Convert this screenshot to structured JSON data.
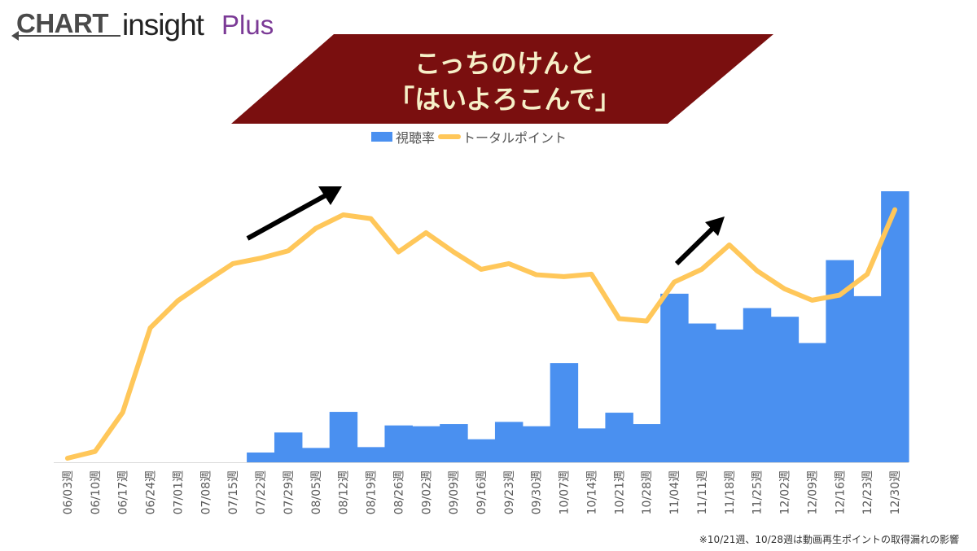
{
  "logo": {
    "chart": "CHART",
    "insight": "insight",
    "plus": "Plus"
  },
  "title": {
    "line1": "こっちのけんと",
    "line2": "「はいよろこんで」"
  },
  "legend": {
    "bar": "視聴率",
    "line": "トータルポイント"
  },
  "colors": {
    "bar": "#4a90f0",
    "line": "#ffc75a",
    "banner": "#7a0f0f",
    "title_text": "#f6f0c8",
    "arrow": "#000000"
  },
  "footnote": "※10/21週、10/28週は動画再生ポイントの取得漏れの影響",
  "chart_data": {
    "type": "bar+line",
    "categories": [
      "06/03週",
      "06/10週",
      "06/17週",
      "06/24週",
      "07/01週",
      "07/08週",
      "07/15週",
      "07/22週",
      "07/29週",
      "08/05週",
      "08/12週",
      "08/19週",
      "08/26週",
      "09/02週",
      "09/09週",
      "09/16週",
      "09/23週",
      "09/30週",
      "10/07週",
      "10/14週",
      "10/21週",
      "10/28週",
      "11/04週",
      "11/11週",
      "11/18週",
      "11/25週",
      "12/02週",
      "12/09週",
      "12/16週",
      "12/23週",
      "12/30週"
    ],
    "series": [
      {
        "name": "視聴率",
        "type": "bar",
        "values": [
          0,
          0,
          0,
          0,
          0,
          0,
          0,
          3.6,
          11.0,
          5.3,
          18.6,
          5.6,
          13.6,
          13.3,
          14.1,
          8.5,
          14.9,
          13.3,
          36.6,
          12.5,
          18.3,
          14.1,
          62.2,
          51.2,
          49.0,
          56.9,
          53.7,
          44.0,
          74.6,
          61.3,
          100
        ]
      },
      {
        "name": "トータルポイント",
        "type": "line",
        "values": [
          1.5,
          4.0,
          18.4,
          49.6,
          59.6,
          66.6,
          73.3,
          75.3,
          78.0,
          86.3,
          91.3,
          89.9,
          77.6,
          84.7,
          77.6,
          71.2,
          73.3,
          69.2,
          68.5,
          69.4,
          53.0,
          52.1,
          66.5,
          71.2,
          80.2,
          70.7,
          64.0,
          59.8,
          61.7,
          69.4,
          93.2
        ]
      }
    ],
    "ylim": [
      0,
      100
    ],
    "grid": false,
    "legend_position": "top",
    "xlabel": "",
    "ylabel": ""
  }
}
